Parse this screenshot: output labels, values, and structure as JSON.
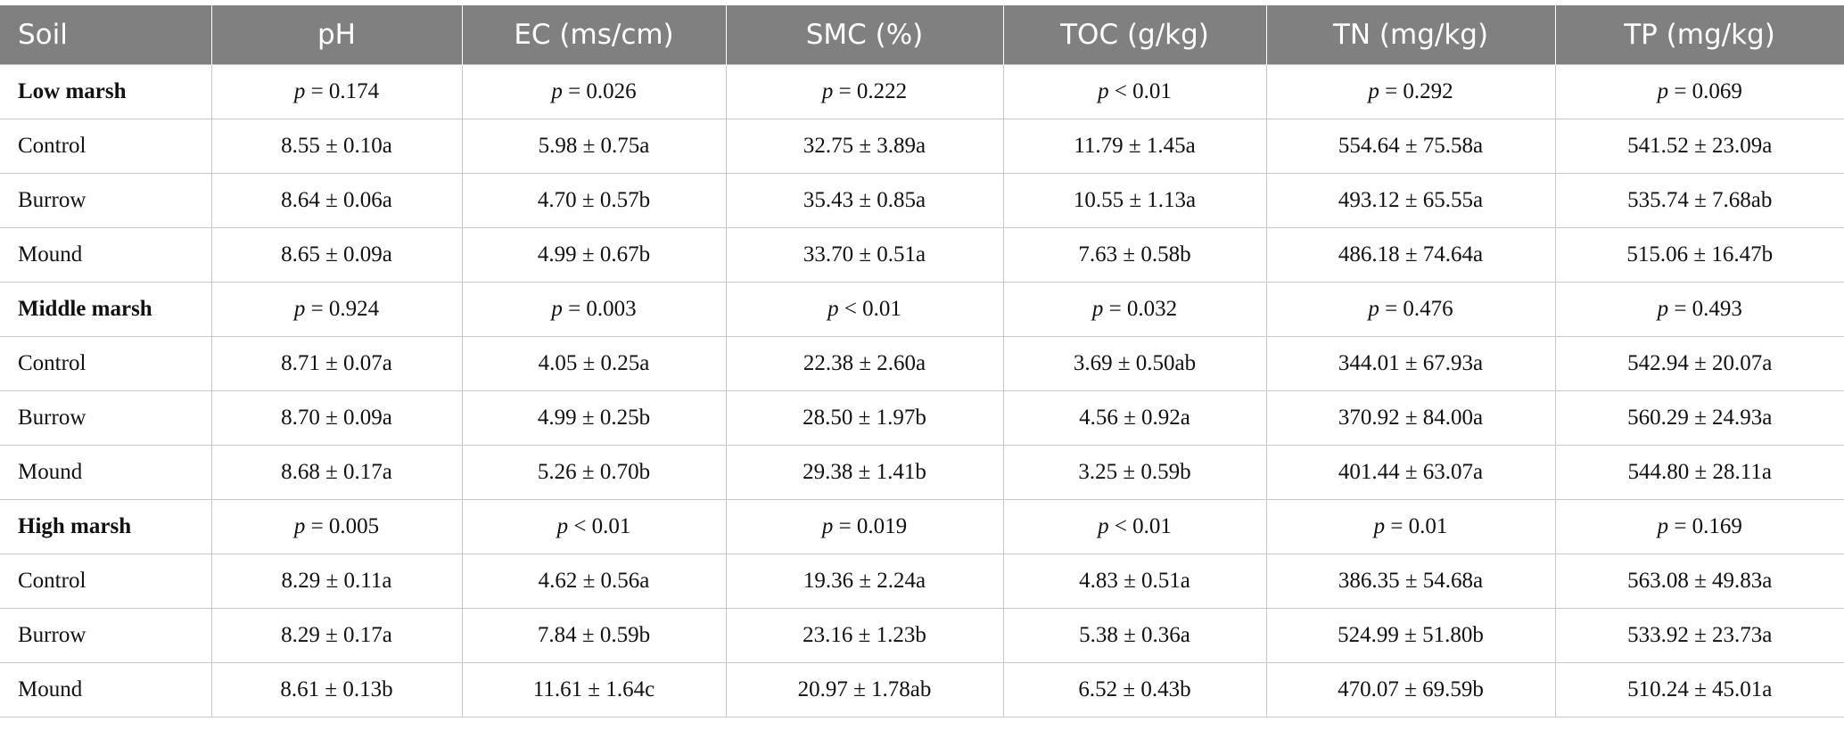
{
  "table": {
    "header": [
      "Soil",
      "pH",
      "EC (ms/cm)",
      "SMC (%)",
      "TOC (g/kg)",
      "TN (mg/kg)",
      "TP (mg/kg)"
    ],
    "groups": [
      {
        "name": "Low marsh",
        "p_values": [
          "p = 0.174",
          "p = 0.026",
          "p = 0.222",
          "p < 0.01",
          "p = 0.292",
          "p = 0.069"
        ],
        "rows": [
          {
            "label": "Control",
            "values": [
              "8.55 ± 0.10a",
              "5.98 ± 0.75a",
              "32.75 ± 3.89a",
              "11.79 ± 1.45a",
              "554.64 ± 75.58a",
              "541.52 ± 23.09a"
            ]
          },
          {
            "label": "Burrow",
            "values": [
              "8.64 ± 0.06a",
              "4.70 ± 0.57b",
              "35.43 ± 0.85a",
              "10.55 ± 1.13a",
              "493.12 ± 65.55a",
              "535.74 ± 7.68ab"
            ]
          },
          {
            "label": "Mound",
            "values": [
              "8.65 ± 0.09a",
              "4.99 ± 0.67b",
              "33.70 ± 0.51a",
              "7.63 ± 0.58b",
              "486.18 ± 74.64a",
              "515.06 ± 16.47b"
            ]
          }
        ]
      },
      {
        "name": "Middle marsh",
        "p_values": [
          "p = 0.924",
          "p = 0.003",
          "p < 0.01",
          "p = 0.032",
          "p = 0.476",
          "p = 0.493"
        ],
        "rows": [
          {
            "label": "Control",
            "values": [
              "8.71 ± 0.07a",
              "4.05 ± 0.25a",
              "22.38 ± 2.60a",
              "3.69 ± 0.50ab",
              "344.01 ± 67.93a",
              "542.94 ± 20.07a"
            ]
          },
          {
            "label": "Burrow",
            "values": [
              "8.70 ± 0.09a",
              "4.99 ± 0.25b",
              "28.50 ± 1.97b",
              "4.56 ± 0.92a",
              "370.92 ± 84.00a",
              "560.29 ± 24.93a"
            ]
          },
          {
            "label": "Mound",
            "values": [
              "8.68 ± 0.17a",
              "5.26 ± 0.70b",
              "29.38 ± 1.41b",
              "3.25 ± 0.59b",
              "401.44 ± 63.07a",
              "544.80 ± 28.11a"
            ]
          }
        ]
      },
      {
        "name": "High marsh",
        "p_values": [
          "p = 0.005",
          "p < 0.01",
          "p = 0.019",
          "p < 0.01",
          "p = 0.01",
          "p = 0.169"
        ],
        "rows": [
          {
            "label": "Control",
            "values": [
              "8.29 ± 0.11a",
              "4.62 ± 0.56a",
              "19.36 ± 2.24a",
              "4.83 ± 0.51a",
              "386.35 ± 54.68a",
              "563.08 ± 49.83a"
            ]
          },
          {
            "label": "Burrow",
            "values": [
              "8.29 ± 0.17a",
              "7.84 ± 0.59b",
              "23.16 ± 1.23b",
              "5.38 ± 0.36a",
              "524.99 ± 51.80b",
              "533.92 ± 23.73a"
            ]
          },
          {
            "label": "Mound",
            "values": [
              "8.61 ± 0.13b",
              "11.61 ± 1.64c",
              "20.97 ± 1.78ab",
              "6.52 ± 0.43b",
              "470.07 ± 69.59b",
              "510.24 ± 45.01a"
            ]
          }
        ]
      }
    ]
  }
}
